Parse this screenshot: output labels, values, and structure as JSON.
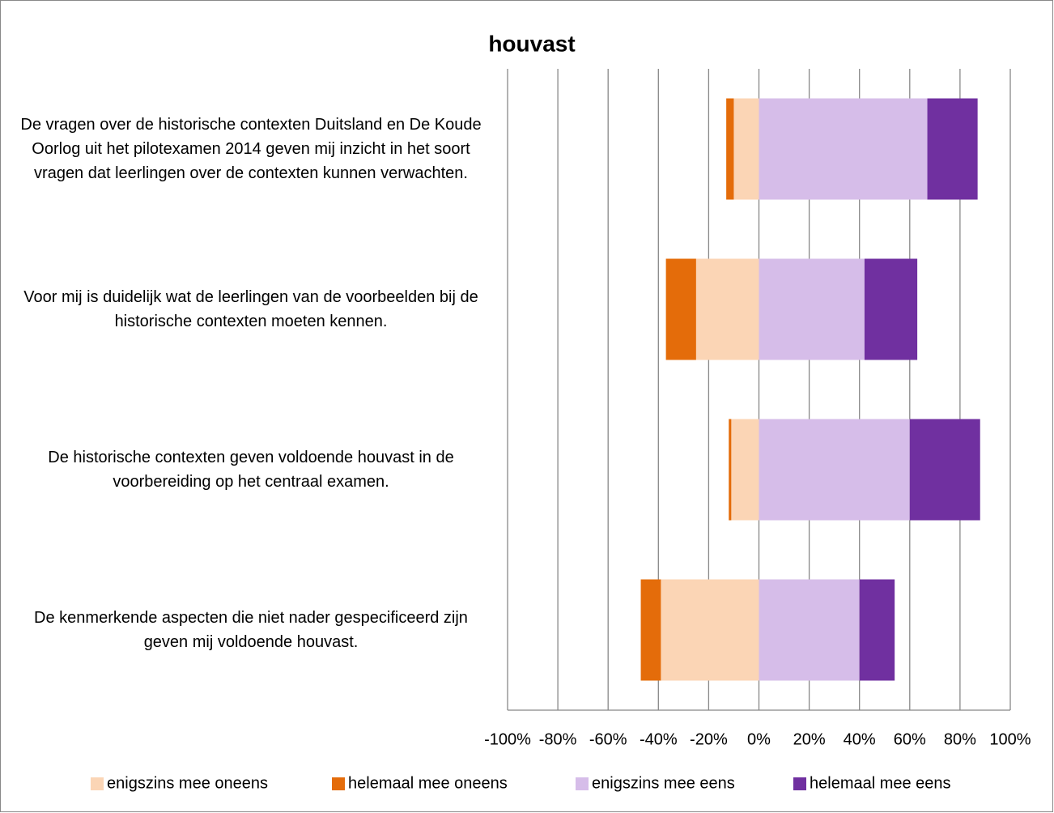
{
  "chart_data": {
    "type": "bar",
    "orientation": "horizontal",
    "stacked": true,
    "title": "houvast",
    "categories": [
      "De vragen over de historische contexten Duitsland en De Koude Oorlog uit het pilotexamen 2014 geven mij inzicht in het soort vragen dat leerlingen over de contexten kunnen verwachten.",
      "Voor mij is duidelijk wat de leerlingen van de voorbeelden bij de historische contexten moeten kennen.",
      "De historische contexten geven voldoende houvast in de voorbereiding op het centraal examen.",
      "De kenmerkende aspecten die niet nader gespecificeerd zijn geven mij voldoende houvast."
    ],
    "series": [
      {
        "name": "enigszins mee oneens",
        "color": "#fbd5b5",
        "values": [
          -10,
          -25,
          -11,
          -39
        ]
      },
      {
        "name": "helemaal mee oneens",
        "color": "#e46c0a",
        "values": [
          -3,
          -12,
          -1,
          -8
        ]
      },
      {
        "name": "enigszins mee eens",
        "color": "#d6bde9",
        "values": [
          67,
          42,
          60,
          40
        ]
      },
      {
        "name": "helemaal mee eens",
        "color": "#7030a0",
        "values": [
          20,
          21,
          28,
          14
        ]
      }
    ],
    "xlim": [
      -100,
      100
    ],
    "xticks": [
      {
        "value": -100,
        "label": "-100%"
      },
      {
        "value": -80,
        "label": "-80%"
      },
      {
        "value": -60,
        "label": "-60%"
      },
      {
        "value": -40,
        "label": "-40%"
      },
      {
        "value": -20,
        "label": "-20%"
      },
      {
        "value": 0,
        "label": "0%"
      },
      {
        "value": 20,
        "label": "20%"
      },
      {
        "value": 40,
        "label": "40%"
      },
      {
        "value": 60,
        "label": "60%"
      },
      {
        "value": 80,
        "label": "80%"
      },
      {
        "value": 100,
        "label": "100%"
      }
    ],
    "grid": true,
    "legend": "bottom"
  }
}
